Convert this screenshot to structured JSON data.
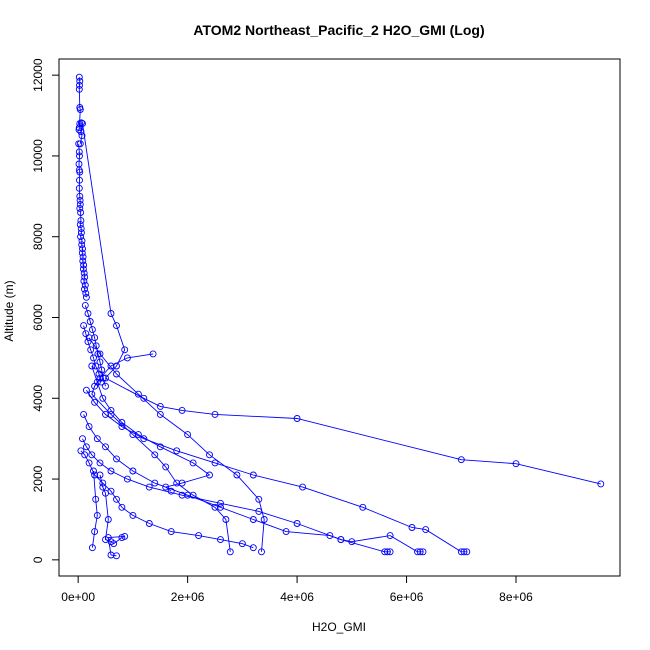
{
  "chart_data": {
    "type": "line",
    "title": "ATOM2 Northeast_Pacific_2 H2O_GMI (Log)",
    "xlabel": "H2O_GMI",
    "ylabel": "Altitude (m)",
    "xlim": [
      -350000,
      9900000
    ],
    "ylim": [
      -400,
      12400
    ],
    "x_ticks": [
      {
        "value": 0,
        "label": "0e+00"
      },
      {
        "value": 2000000,
        "label": "2e+06"
      },
      {
        "value": 4000000,
        "label": "4e+06"
      },
      {
        "value": 6000000,
        "label": "6e+06"
      },
      {
        "value": 8000000,
        "label": "8e+06"
      }
    ],
    "y_ticks": [
      {
        "value": 0,
        "label": "0"
      },
      {
        "value": 2000,
        "label": "2000"
      },
      {
        "value": 4000,
        "label": "4000"
      },
      {
        "value": 6000,
        "label": "6000"
      },
      {
        "value": 8000,
        "label": "8000"
      },
      {
        "value": 10000,
        "label": "10000"
      },
      {
        "value": 12000,
        "label": "12000"
      }
    ],
    "line_color": "#0000ff",
    "marker": "open-circle",
    "grid": false,
    "legend": "none",
    "series": [
      {
        "x": [
          20000,
          30000,
          25000,
          20000,
          30000,
          40000,
          20000,
          15000,
          30000,
          60000,
          50000,
          70000,
          40000
        ],
        "y": [
          11950,
          11850,
          11750,
          11650,
          11200,
          11150,
          10700,
          10650,
          10800,
          10820,
          10600,
          10500,
          10300
        ]
      },
      {
        "x": [
          10000,
          20000,
          25000,
          15000,
          20000,
          30000,
          25000,
          20000,
          30000,
          35000,
          40000,
          30000,
          45000,
          50000,
          40000,
          55000,
          60000,
          45000,
          70000,
          65000,
          80000,
          75000,
          90000,
          85000,
          100000,
          95000,
          110000,
          120000,
          105000,
          130000,
          115000,
          140000,
          150000
        ],
        "y": [
          10300,
          10100,
          10000,
          9800,
          9650,
          9600,
          9400,
          9200,
          9000,
          8900,
          8800,
          8700,
          8600,
          8400,
          8300,
          8200,
          8100,
          8000,
          7900,
          7800,
          7700,
          7600,
          7500,
          7400,
          7300,
          7200,
          7100,
          7000,
          6900,
          6800,
          6700,
          6600,
          6500
        ]
      },
      {
        "x": [
          80000,
          600000,
          700000,
          850000,
          700000,
          500000,
          1200000,
          1500000,
          1900000,
          2500000,
          4000000,
          7000000,
          8000000,
          9550000
        ],
        "y": [
          10800,
          6100,
          5800,
          5200,
          4800,
          4500,
          4000,
          3800,
          3700,
          3600,
          3500,
          2480,
          2380,
          1880
        ]
      },
      {
        "x": [
          1370000,
          900000,
          600000,
          400000,
          300000,
          250000,
          600000,
          1000000,
          1400000,
          1600000,
          1800000,
          2100000,
          2500000,
          2700000,
          2780000
        ],
        "y": [
          5100,
          5000,
          4800,
          4500,
          4300,
          4100,
          3600,
          3100,
          2600,
          2300,
          1900,
          1600,
          1300,
          1000,
          200
        ]
      },
      {
        "x": [
          200000,
          400000,
          700000,
          1100000,
          1500000,
          2000000,
          2400000,
          2900000,
          3300000,
          3400000,
          3350000
        ],
        "y": [
          5500,
          5100,
          4600,
          4100,
          3600,
          3100,
          2600,
          2100,
          1500,
          1000,
          200
        ]
      },
      {
        "x": [
          250000,
          350000,
          450000,
          600000,
          800000,
          1100000,
          1500000,
          2100000,
          2400000,
          1900000,
          1600000,
          1700000
        ],
        "y": [
          4800,
          4400,
          4000,
          3700,
          3400,
          3100,
          2800,
          2400,
          2100,
          1900,
          1800,
          1700
        ]
      },
      {
        "x": [
          150000,
          300000,
          500000,
          800000,
          1200000,
          1800000,
          2500000,
          3200000,
          4100000,
          5200000,
          6100000,
          6350000,
          7000000,
          7100000,
          7050000
        ],
        "y": [
          4200,
          3900,
          3600,
          3300,
          3000,
          2700,
          2400,
          2100,
          1800,
          1300,
          800,
          750,
          200,
          200,
          200
        ]
      },
      {
        "x": [
          100000,
          200000,
          350000,
          500000,
          700000,
          1000000,
          1400000,
          2000000,
          2600000,
          3200000,
          3800000,
          4600000,
          4800000,
          5000000,
          5700000,
          6200000,
          6250000,
          6300000
        ],
        "y": [
          3600,
          3300,
          3000,
          2800,
          2500,
          2200,
          1900,
          1600,
          1300,
          1000,
          700,
          600,
          500,
          450,
          600,
          200,
          200,
          200
        ]
      },
      {
        "x": [
          80000,
          150000,
          250000,
          400000,
          600000,
          900000,
          1300000,
          1900000,
          2600000,
          3300000,
          4000000,
          4800000,
          5600000,
          5650000,
          5700000
        ],
        "y": [
          3000,
          2800,
          2600,
          2400,
          2200,
          2000,
          1800,
          1600,
          1400,
          1200,
          900,
          500,
          200,
          200,
          200
        ]
      },
      {
        "x": [
          50000,
          120000,
          200000,
          300000,
          450000,
          600000,
          700000,
          800000,
          1000000,
          1300000,
          1700000,
          2200000,
          2600000,
          3000000,
          3200000
        ],
        "y": [
          2700,
          2600,
          2400,
          2100,
          1900,
          1700,
          1500,
          1300,
          1100,
          900,
          700,
          600,
          500,
          400,
          300
        ]
      },
      {
        "x": [
          400000,
          450000,
          500000,
          550000,
          500000,
          600000,
          650000,
          800000,
          850000,
          550000,
          600000,
          700000
        ],
        "y": [
          2100,
          1800,
          1650,
          1000,
          500,
          450,
          400,
          550,
          580,
          550,
          120,
          100
        ]
      },
      {
        "x": [
          280000,
          320000,
          350000,
          300000,
          260000
        ],
        "y": [
          2200,
          1500,
          1100,
          700,
          300
        ]
      },
      {
        "x": [
          130000,
          180000,
          220000,
          260000,
          300000,
          330000,
          360000,
          400000,
          430000,
          460000,
          500000
        ],
        "y": [
          6300,
          6100,
          5900,
          5700,
          5500,
          5300,
          5100,
          4900,
          4700,
          4500,
          4300
        ]
      },
      {
        "x": [
          100000,
          140000,
          180000,
          230000,
          280000,
          320000,
          380000,
          420000
        ],
        "y": [
          5800,
          5600,
          5400,
          5200,
          5000,
          4800,
          4600,
          4400
        ]
      }
    ]
  }
}
